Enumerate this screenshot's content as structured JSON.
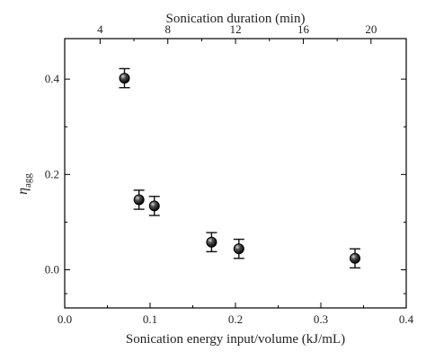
{
  "chart_data": {
    "type": "scatter",
    "bottom_axis": {
      "label": "Sonication energy input/volume (kJ/mL)",
      "range": [
        0.0,
        0.4
      ],
      "ticks": [
        "0.0",
        "0.1",
        "0.2",
        "0.3",
        "0.4"
      ],
      "tick_values": [
        0.0,
        0.1,
        0.2,
        0.3,
        0.4
      ]
    },
    "top_axis": {
      "label": "Sonication duration (min)",
      "range": [
        1.91,
        22.08
      ],
      "ticks": [
        "4",
        "8",
        "12",
        "16",
        "20"
      ],
      "tick_values": [
        4,
        8,
        12,
        16,
        20
      ]
    },
    "left_axis": {
      "label_main": "η",
      "label_sub": "agg",
      "range": [
        -0.08,
        0.485
      ],
      "ticks": [
        "0.0",
        "0.2",
        "0.4"
      ],
      "tick_values": [
        0.0,
        0.2,
        0.4
      ]
    },
    "points": [
      {
        "x": 0.07,
        "y": 0.402,
        "err": 0.02
      },
      {
        "x": 0.087,
        "y": 0.147,
        "err": 0.02
      },
      {
        "x": 0.105,
        "y": 0.134,
        "err": 0.02
      },
      {
        "x": 0.172,
        "y": 0.058,
        "err": 0.02
      },
      {
        "x": 0.204,
        "y": 0.044,
        "err": 0.02
      },
      {
        "x": 0.34,
        "y": 0.024,
        "err": 0.02
      }
    ],
    "grid": false,
    "marker_style": "filled-black-circle"
  }
}
